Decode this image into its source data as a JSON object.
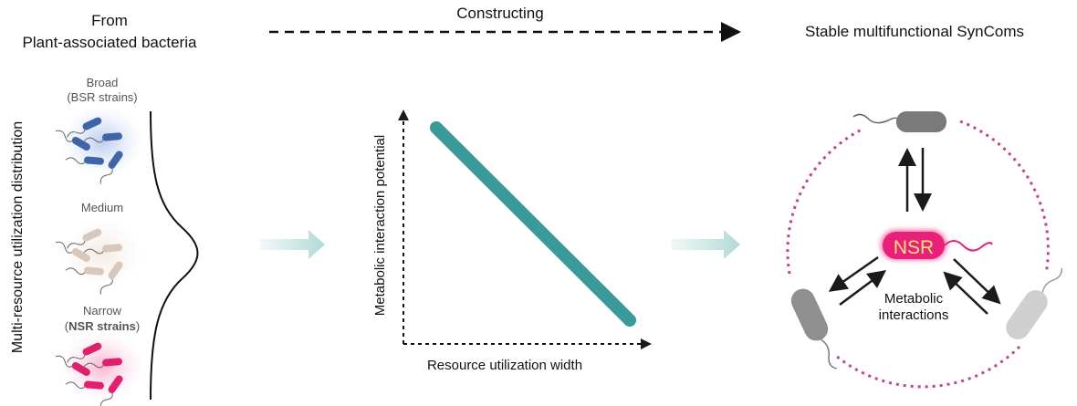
{
  "header": {
    "source_line1": "From",
    "source_line2": "Plant-associated bacteria",
    "process": "Constructing",
    "result": "Stable multifunctional SynComs"
  },
  "left_panel": {
    "axis_label": "Multi-resource utilization distribution",
    "groups": [
      {
        "label": "Broad",
        "sublabel": "(BSR strains)",
        "color": "#3f64a8"
      },
      {
        "label": "Medium",
        "sublabel": "",
        "color": "#d8c8bb"
      },
      {
        "label": "Narrow",
        "sublabel_open": "(",
        "sublabel_bold": "NSR strains",
        "sublabel_close": ")",
        "color": "#e0206e"
      }
    ]
  },
  "middle_panel": {
    "ylabel": "Metabolic interaction potential",
    "xlabel": "Resource utilization width",
    "line_color": "#3a9a9a"
  },
  "right_panel": {
    "center_label": "NSR",
    "interaction_line1": "Metabolic",
    "interaction_line2": "interactions",
    "ring_color": "#c0448f",
    "nsr_color": "#e8207a",
    "nsr_text_color": "#f7e27c"
  }
}
